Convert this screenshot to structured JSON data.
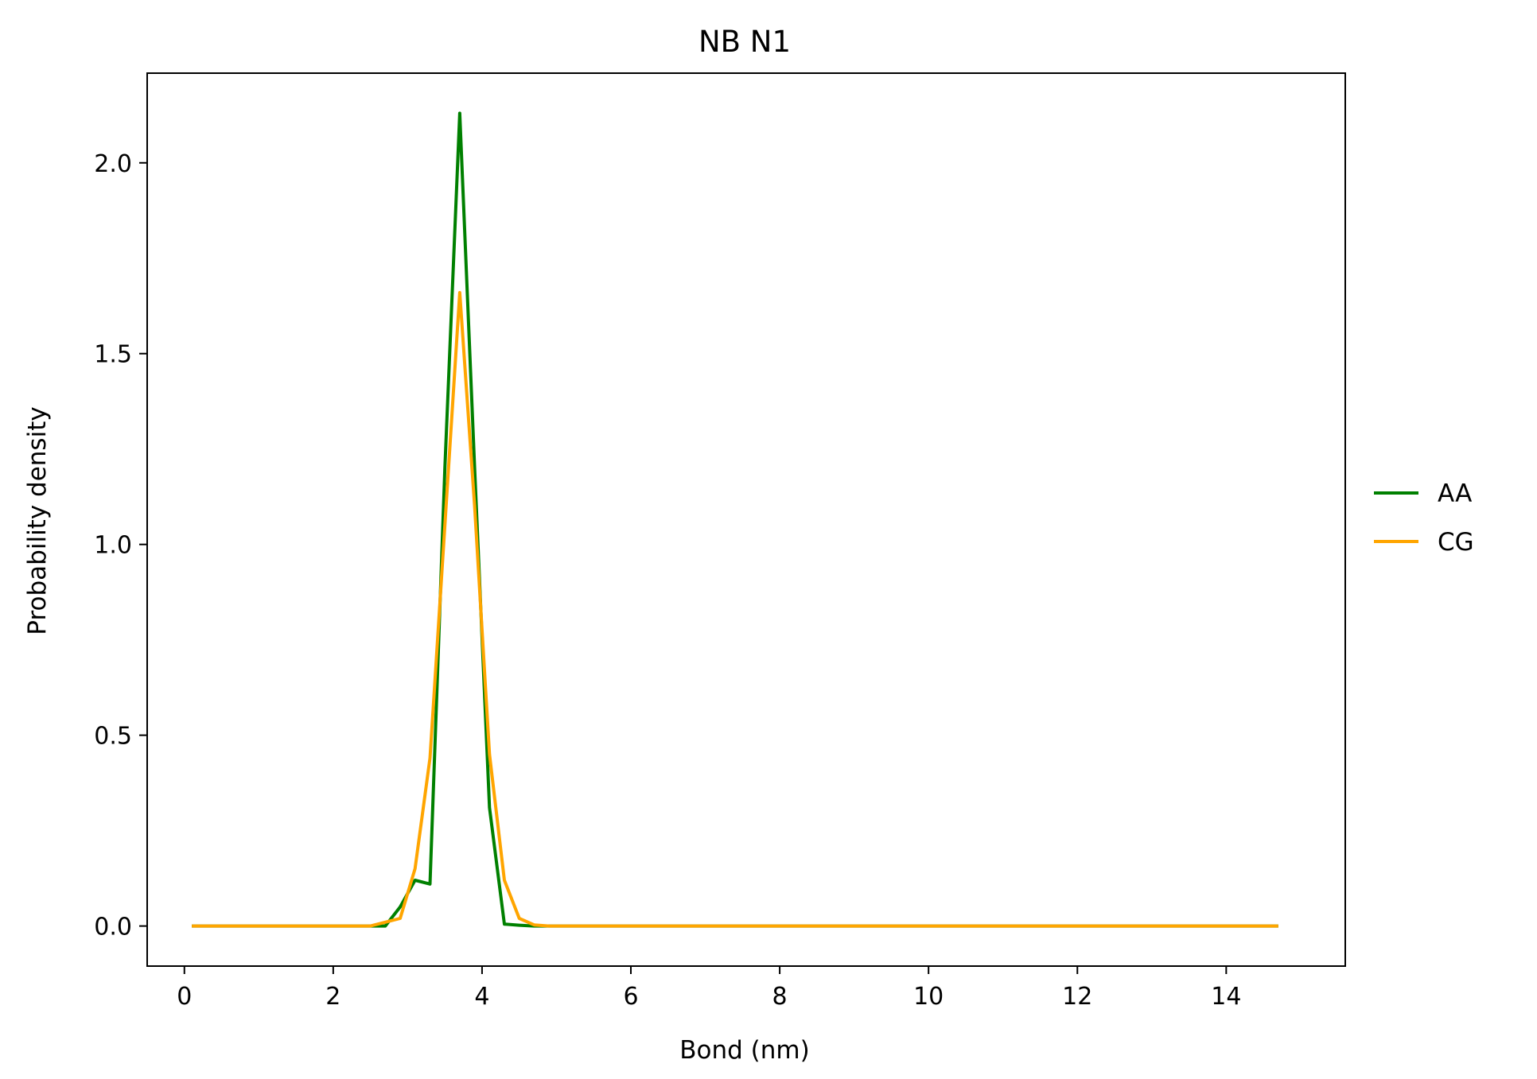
{
  "chart_data": {
    "type": "line",
    "title": "NB N1",
    "xlabel": "Bond (nm)",
    "ylabel": "Probability density",
    "xlim": [
      -0.5,
      15.6
    ],
    "ylim": [
      -0.105,
      2.235
    ],
    "xticks": [
      0,
      2,
      4,
      6,
      8,
      10,
      12,
      14
    ],
    "yticks": [
      0.0,
      0.5,
      1.0,
      1.5,
      2.0
    ],
    "xtick_labels": [
      "0",
      "2",
      "4",
      "6",
      "8",
      "10",
      "12",
      "14"
    ],
    "ytick_labels": [
      "0.0",
      "0.5",
      "1.0",
      "1.5",
      "2.0"
    ],
    "grid": false,
    "legend_position": "outside-right",
    "series": [
      {
        "name": "AA",
        "color": "#008000",
        "x": [
          0.1,
          0.3,
          0.5,
          0.7,
          0.9,
          1.1,
          1.3,
          1.5,
          1.7,
          1.9,
          2.1,
          2.3,
          2.5,
          2.7,
          2.9,
          3.1,
          3.3,
          3.5,
          3.7,
          3.9,
          4.1,
          4.3,
          4.5,
          4.7,
          4.9,
          14.7
        ],
        "y": [
          0,
          0,
          0,
          0,
          0,
          0,
          0,
          0,
          0,
          0,
          0,
          0,
          0,
          0.0,
          0.05,
          0.12,
          0.11,
          1.2,
          2.13,
          1.2,
          0.31,
          0.005,
          0.002,
          0,
          0,
          0
        ]
      },
      {
        "name": "CG",
        "color": "#FFA500",
        "x": [
          0.1,
          0.3,
          0.5,
          0.7,
          0.9,
          1.1,
          1.3,
          1.5,
          1.7,
          1.9,
          2.1,
          2.3,
          2.5,
          2.7,
          2.9,
          3.1,
          3.3,
          3.5,
          3.7,
          3.9,
          4.1,
          4.3,
          4.5,
          4.7,
          4.9,
          14.7
        ],
        "y": [
          0,
          0,
          0,
          0,
          0,
          0,
          0,
          0,
          0,
          0,
          0,
          0,
          0.0,
          0.01,
          0.02,
          0.15,
          0.44,
          1.05,
          1.66,
          1.1,
          0.45,
          0.12,
          0.02,
          0.003,
          0,
          0
        ]
      }
    ]
  }
}
